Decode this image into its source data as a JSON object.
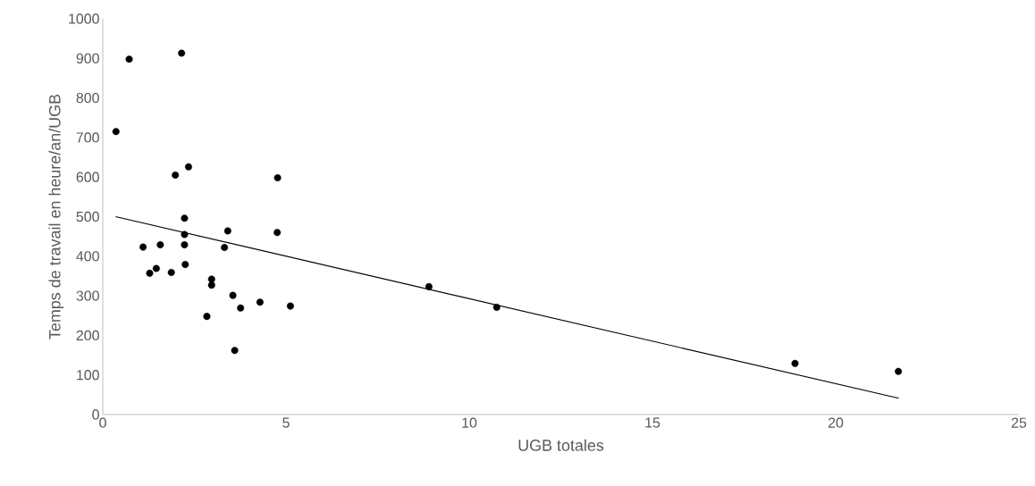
{
  "chart_data": {
    "type": "scatter",
    "xlabel": "UGB totales",
    "ylabel": "Temps de travail en heure/an/UGB",
    "xlim": [
      0,
      25
    ],
    "xticks": [
      0,
      5,
      10,
      15,
      20,
      25
    ],
    "ylim": [
      0,
      1000
    ],
    "yticks": [
      0,
      100,
      200,
      300,
      400,
      500,
      600,
      700,
      800,
      900,
      1000
    ],
    "series": [
      {
        "color": "#000000",
        "marker": "circle",
        "x": [
          0.72,
          2.15,
          0.36,
          2.34,
          1.98,
          4.77,
          2.23,
          3.41,
          4.76,
          2.23,
          1.57,
          2.23,
          1.1,
          3.32,
          2.25,
          1.46,
          1.87,
          1.28,
          2.97,
          2.97,
          3.55,
          4.29,
          3.76,
          5.12,
          2.84,
          3.6,
          8.9,
          10.75,
          18.89,
          21.71
        ],
        "values": [
          898,
          913,
          715,
          626,
          605,
          598,
          496,
          464,
          460,
          455,
          429,
          429,
          423,
          422,
          379,
          369,
          359,
          357,
          342,
          327,
          301,
          284,
          269,
          274,
          248,
          162,
          323,
          271,
          129,
          109
        ]
      },
      {
        "type": "line",
        "color": "#000000",
        "marker": "none",
        "x": [
          0.35,
          21.72
        ],
        "values": [
          500,
          41
        ]
      }
    ]
  }
}
